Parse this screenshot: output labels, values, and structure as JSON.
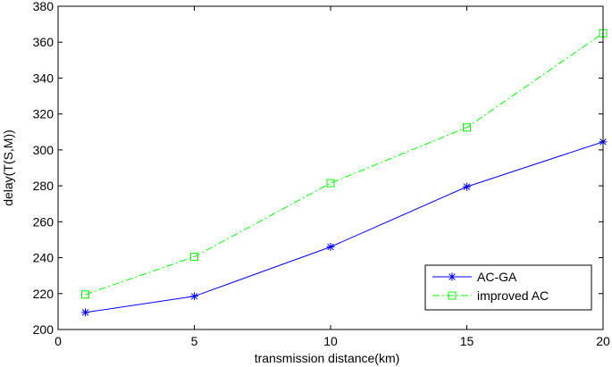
{
  "chart_data": {
    "type": "line",
    "title": "",
    "xlabel": "transmission distance(km)",
    "ylabel": "delay(T(S,M))",
    "xlim": [
      0,
      20
    ],
    "ylim": [
      200,
      380
    ],
    "xticks": [
      0,
      5,
      10,
      15,
      20
    ],
    "yticks": [
      200,
      220,
      240,
      260,
      280,
      300,
      320,
      340,
      360,
      380
    ],
    "grid": false,
    "legend_position": "bottom-right",
    "series": [
      {
        "name": "AC-GA",
        "color": "#0000ff",
        "line_style": "solid",
        "marker": "asterisk",
        "x": [
          1,
          5,
          10,
          15,
          20
        ],
        "y": [
          209.5,
          218.5,
          246,
          279.5,
          304.5
        ]
      },
      {
        "name": "improved AC",
        "color": "#00ff00",
        "line_style": "dash-dot",
        "marker": "square",
        "x": [
          1,
          5,
          10,
          15,
          20
        ],
        "y": [
          219.5,
          240.5,
          281.5,
          312.5,
          365
        ]
      }
    ]
  }
}
